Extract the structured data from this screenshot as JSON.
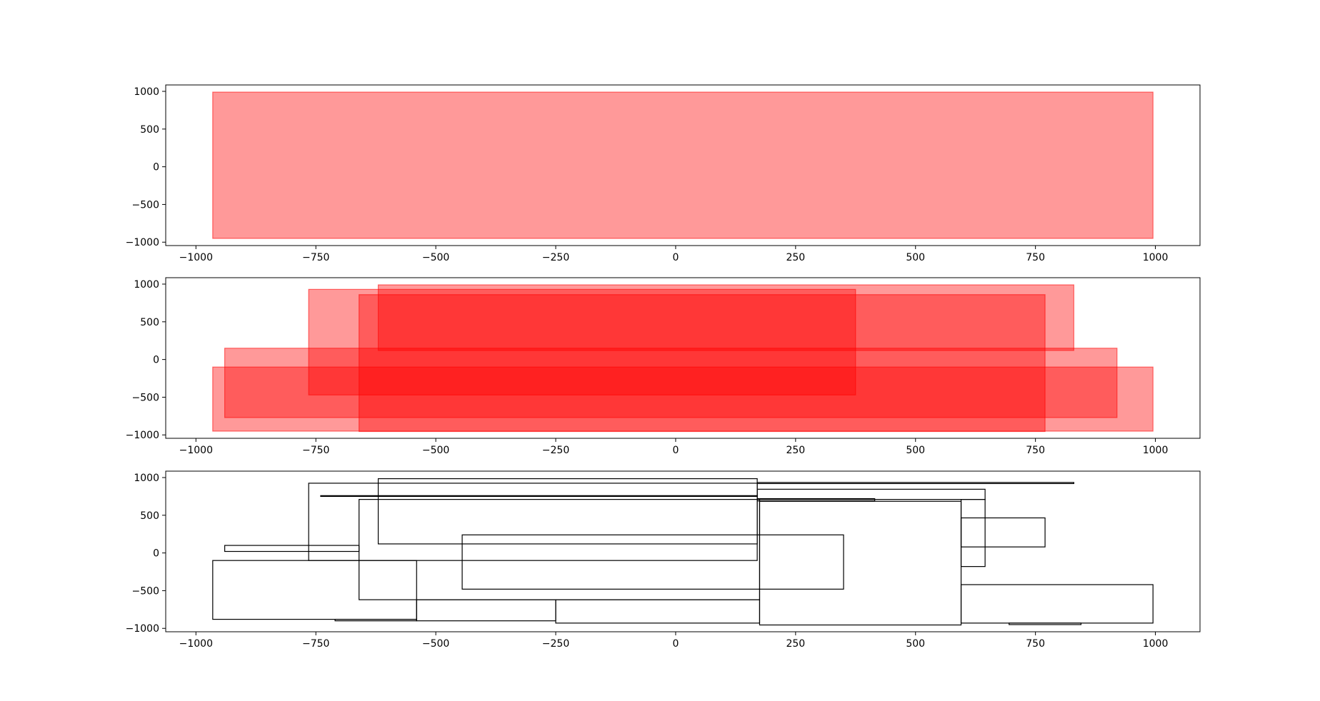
{
  "chart_data": [
    {
      "type": "rectangles",
      "fill": "#ff0000",
      "fill_opacity": 0.4,
      "stroke": "#ff0000",
      "xlim": [
        -1063,
        1093
      ],
      "ylim": [
        -1045,
        1085
      ],
      "xticks": [
        -1000,
        -750,
        -500,
        -250,
        0,
        250,
        500,
        750,
        1000
      ],
      "xtick_labels": [
        "−1000",
        "−750",
        "−500",
        "−250",
        "0",
        "250",
        "500",
        "750",
        "1000"
      ],
      "yticks": [
        -1000,
        -500,
        0,
        500,
        1000
      ],
      "ytick_labels": [
        "−1000",
        "−500",
        "0",
        "500",
        "1000"
      ],
      "rects": [
        {
          "x0": -965,
          "x1": 995,
          "y0": -950,
          "y1": 990
        }
      ]
    },
    {
      "type": "rectangles",
      "fill": "#ff0000",
      "fill_opacity": 0.4,
      "stroke": "#ff0000",
      "xlim": [
        -1063,
        1093
      ],
      "ylim": [
        -1045,
        1085
      ],
      "xticks": [
        -1000,
        -750,
        -500,
        -250,
        0,
        250,
        500,
        750,
        1000
      ],
      "xtick_labels": [
        "−1000",
        "−750",
        "−500",
        "−250",
        "0",
        "250",
        "500",
        "750",
        "1000"
      ],
      "yticks": [
        -1000,
        -500,
        0,
        500,
        1000
      ],
      "ytick_labels": [
        "−1000",
        "−500",
        "0",
        "500",
        "1000"
      ],
      "rects": [
        {
          "x0": -965,
          "x1": 995,
          "y0": -950,
          "y1": -100
        },
        {
          "x0": -940,
          "x1": 920,
          "y0": -770,
          "y1": 150
        },
        {
          "x0": -765,
          "x1": 375,
          "y0": -470,
          "y1": 930
        },
        {
          "x0": -620,
          "x1": 830,
          "y0": 120,
          "y1": 990
        },
        {
          "x0": -660,
          "x1": 770,
          "y0": -955,
          "y1": 860
        }
      ]
    },
    {
      "type": "rectangles",
      "fill": "none",
      "fill_opacity": 0,
      "stroke": "#000000",
      "xlim": [
        -1063,
        1093
      ],
      "ylim": [
        -1045,
        1085
      ],
      "xticks": [
        -1000,
        -750,
        -500,
        -250,
        0,
        250,
        500,
        750,
        1000
      ],
      "xtick_labels": [
        "−1000",
        "−750",
        "−500",
        "−250",
        "0",
        "250",
        "500",
        "750",
        "1000"
      ],
      "yticks": [
        -1000,
        -500,
        0,
        500,
        1000
      ],
      "ytick_labels": [
        "−1000",
        "−500",
        "0",
        "500",
        "1000"
      ],
      "rects": [
        {
          "x0": -765,
          "x1": 170,
          "y0": -100,
          "y1": 925
        },
        {
          "x0": -740,
          "x1": 170,
          "y0": 750,
          "y1": 760
        },
        {
          "x0": 170,
          "x1": 830,
          "y0": 920,
          "y1": 935
        },
        {
          "x0": -940,
          "x1": -660,
          "y0": 20,
          "y1": 100
        },
        {
          "x0": -965,
          "x1": -540,
          "y0": -880,
          "y1": -100
        },
        {
          "x0": -710,
          "x1": -540,
          "y0": -900,
          "y1": -880
        },
        {
          "x0": -540,
          "x1": -250,
          "y0": -900,
          "y1": -620
        },
        {
          "x0": -250,
          "x1": 175,
          "y0": -930,
          "y1": -620
        },
        {
          "x0": -660,
          "x1": 175,
          "y0": -620,
          "y1": 710
        },
        {
          "x0": -445,
          "x1": 350,
          "y0": -480,
          "y1": 240
        },
        {
          "x0": 170,
          "x1": 645,
          "y0": 710,
          "y1": 845
        },
        {
          "x0": 170,
          "x1": 415,
          "y0": 690,
          "y1": 720
        },
        {
          "x0": 595,
          "x1": 645,
          "y0": -180,
          "y1": 710
        },
        {
          "x0": 595,
          "x1": 770,
          "y0": 80,
          "y1": 465
        },
        {
          "x0": 595,
          "x1": 995,
          "y0": -930,
          "y1": -420
        },
        {
          "x0": 695,
          "x1": 845,
          "y0": -950,
          "y1": -930
        },
        {
          "x0": 175,
          "x1": 595,
          "y0": -955,
          "y1": 685
        },
        {
          "x0": -620,
          "x1": 170,
          "y0": 120,
          "y1": 985
        }
      ]
    }
  ]
}
